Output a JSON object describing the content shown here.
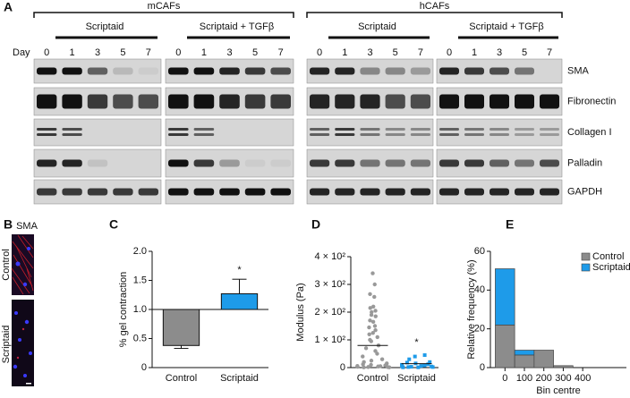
{
  "panel_labels": [
    "A",
    "B",
    "C",
    "D",
    "E"
  ],
  "blot": {
    "groups": [
      {
        "name": "mCAFs",
        "treatments": [
          "Scriptaid",
          "Scriptaid + TGFβ"
        ]
      },
      {
        "name": "hCAFs",
        "treatments": [
          "Scriptaid",
          "Scriptaid + TGFβ"
        ]
      }
    ],
    "day_label": "Day",
    "days": [
      "0",
      "1",
      "3",
      "5",
      "7"
    ],
    "proteins": [
      "SMA",
      "Fibronectin",
      "Collagen I",
      "Palladin",
      "GAPDH"
    ]
  },
  "image": {
    "title": "SMA",
    "rows": [
      "Control",
      "Scriptaid"
    ]
  },
  "chart_data": [
    {
      "type": "bar",
      "ylabel": "% gel contraction",
      "categories": [
        "Control",
        "Scriptaid"
      ],
      "values": [
        0.38,
        1.27
      ],
      "errors": [
        0.05,
        0.25
      ],
      "colors": [
        "#8c8c8c",
        "#1e9be9"
      ],
      "bottom": 1,
      "ylim": [
        0,
        2
      ],
      "yticks": [
        0,
        0.5,
        {
          "value": 1,
          "label": "1.0"
        },
        1.5,
        {
          "value": 2,
          "label": "2.0"
        }
      ],
      "annotations": [
        {
          "text": "*",
          "x": "Scriptaid"
        }
      ]
    },
    {
      "type": "strip",
      "ylabel": "Modulus (Pa)",
      "categories": [
        "Control",
        "Scriptaid"
      ],
      "points": [
        [
          340,
          300,
          265,
          255,
          220,
          215,
          205,
          200,
          190,
          185,
          170,
          165,
          150,
          145,
          135,
          125,
          120,
          110,
          100,
          95,
          80,
          70,
          60,
          50,
          40,
          30,
          25,
          20,
          15,
          12,
          10,
          8,
          6,
          5,
          4,
          3,
          2,
          2,
          1,
          1
        ],
        [
          45,
          40,
          30,
          20,
          18,
          15,
          12,
          10,
          8,
          6,
          5,
          4,
          3,
          2,
          2,
          1,
          1
        ]
      ],
      "means": [
        80,
        14
      ],
      "colors": [
        "#999999",
        "#1e9be9"
      ],
      "ylim": [
        0,
        400
      ],
      "yticks": [
        0,
        {
          "value": 100,
          "label": "1 × 10²"
        },
        {
          "value": 200,
          "label": "2 × 10²"
        },
        {
          "value": 300,
          "label": "3 × 10²"
        },
        {
          "value": 400,
          "label": "4 × 10²"
        }
      ],
      "annotations": [
        {
          "text": "*",
          "x": "Scriptaid"
        }
      ]
    },
    {
      "type": "histogram",
      "stacked": true,
      "ylabel": "Relative frequency (%)",
      "xlabel": "Bin centre",
      "bins": [
        -50,
        50,
        150,
        250,
        350,
        450
      ],
      "series": [
        {
          "name": "Control",
          "color": "#8c8c8c",
          "values": [
            22,
            6.5,
            9,
            1,
            0
          ]
        },
        {
          "name": "Scriptaid",
          "color": "#1e9be9",
          "values": [
            29,
            2.5,
            0,
            0,
            0
          ]
        }
      ],
      "xlim": [
        -75,
        625
      ],
      "xticks": [
        0,
        100,
        200,
        300,
        400
      ],
      "ylim": [
        0,
        60
      ],
      "yticks": [
        0,
        20,
        40,
        60
      ],
      "legend": "upper right"
    }
  ]
}
